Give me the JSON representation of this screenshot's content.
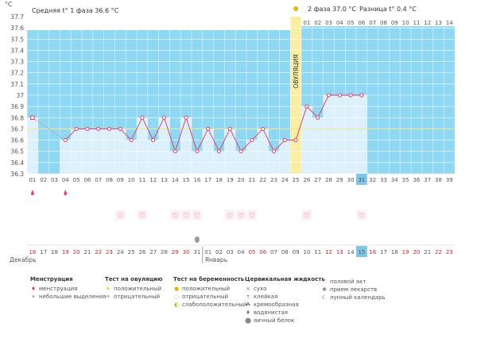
{
  "chart_data": {
    "type": "line",
    "unit_label": "°C",
    "ylim": [
      36.3,
      37.7
    ],
    "yticks": [
      "37.7",
      "37.6",
      "37.5",
      "37.4",
      "37.3",
      "37.2",
      "37.1",
      "37",
      "36.9",
      "36.8",
      "36.7",
      "36.6",
      "36.5",
      "36.4",
      "36.3"
    ],
    "phase1_label": "Средняя t° 1 фаза 36.6 °C",
    "phase2_label": "2 фаза 37.0 °C",
    "difference_label": "Разница t° 0.4 °C",
    "ovulation_label": "ОВУЛЯЦИЯ",
    "ovulation_day": "25",
    "coverline": 36.7,
    "cycle_days": [
      "01",
      "02",
      "03",
      "04",
      "05",
      "06",
      "07",
      "08",
      "09",
      "10",
      "11",
      "12",
      "13",
      "14",
      "15",
      "16",
      "17",
      "18",
      "19",
      "20",
      "21",
      "22",
      "23",
      "24",
      "25",
      "26",
      "27",
      "28",
      "29",
      "30",
      "31",
      "32",
      "33",
      "34",
      "35",
      "36",
      "37",
      "38",
      "39"
    ],
    "cycle_days_top": [
      "01",
      "02",
      "03",
      "04",
      "05",
      "06",
      "07",
      "08",
      "09",
      "10",
      "11",
      "12",
      "13",
      "14"
    ],
    "temperatures": [
      36.8,
      null,
      null,
      36.6,
      36.7,
      36.7,
      36.7,
      36.7,
      36.7,
      36.6,
      36.8,
      36.6,
      36.8,
      36.5,
      36.8,
      36.5,
      36.7,
      36.5,
      36.7,
      36.5,
      36.6,
      36.7,
      36.5,
      36.6,
      36.6,
      36.9,
      36.8,
      37.0,
      37.0,
      37.0,
      37.0
    ],
    "menstruation_days": [
      "01",
      "04"
    ],
    "intercourse_days": [
      "09",
      "11",
      "14",
      "15",
      "16",
      "19",
      "20",
      "21",
      "26",
      "31"
    ],
    "mucus_day": "16",
    "today_day": "31",
    "calendar_dates": [
      "16",
      "17",
      "18",
      "19",
      "20",
      "21",
      "22",
      "23",
      "24",
      "25",
      "26",
      "27",
      "28",
      "29",
      "30",
      "31",
      "01",
      "02",
      "03",
      "04",
      "05",
      "06",
      "07",
      "08",
      "09",
      "10",
      "11",
      "12",
      "13",
      "14",
      "15",
      "16",
      "17",
      "18",
      "19",
      "20",
      "21",
      "22",
      "23"
    ],
    "weekend_dates": [
      "16",
      "22",
      "23",
      "29",
      "30",
      "05",
      "06",
      "12",
      "13",
      "19",
      "20"
    ],
    "month_start": "Декабрь",
    "month_next": "Январь",
    "colors": {
      "line": "#e2426a",
      "chart_bg": "#8fd8f4",
      "column": "#dcf1fb",
      "ovulation": "#fbeea0",
      "today": "#7fc7e6",
      "weekend": "#d2233c",
      "text": "#555555"
    }
  },
  "legend": {
    "menstruation": {
      "title": "Менструация",
      "items": [
        {
          "icon": "blood-drop-icon",
          "label": "менструация"
        },
        {
          "icon": "small-drop-icon",
          "label": "небольшие выделения"
        }
      ]
    },
    "ovulation_test": {
      "title": "Тест на овуляцию",
      "items": [
        {
          "icon": "sun-icon",
          "label": "положительный"
        },
        {
          "icon": "grey-sun-icon",
          "label": "отрицательный"
        }
      ]
    },
    "pregnancy_test": {
      "title": "Тест на беременность",
      "items": [
        {
          "icon": "yellow-circle-icon",
          "label": "положительный"
        },
        {
          "icon": "white-circle-icon",
          "label": "отрицательный"
        },
        {
          "icon": "half-circle-icon",
          "label": "слабоположительный"
        }
      ]
    },
    "cervical_mucus": {
      "title": "Цервикальная жидкость",
      "items": [
        {
          "icon": "dry-icon",
          "label": "сухо"
        },
        {
          "icon": "sticky-icon",
          "label": "клейкая"
        },
        {
          "icon": "creamy-icon",
          "label": "кремообразная"
        },
        {
          "icon": "watery-icon",
          "label": "водянистая"
        },
        {
          "icon": "egg-white-icon",
          "label": "яичный белок"
        }
      ]
    },
    "other": {
      "items": [
        {
          "icon": "heart-icon",
          "label": "половой акт"
        },
        {
          "icon": "pill-icon",
          "label": "прием лекарств"
        },
        {
          "icon": "moon-icon",
          "label": "лунный календарь"
        }
      ]
    }
  }
}
